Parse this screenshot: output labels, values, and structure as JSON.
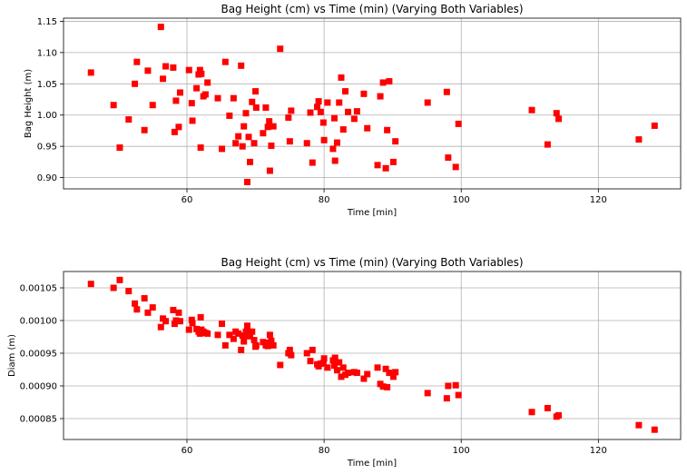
{
  "chart_data": [
    {
      "type": "scatter",
      "title": "Bag Height (cm) vs Time (min) (Varying Both Variables)",
      "xlabel": "Time [min]",
      "ylabel": "Bag Height (m)",
      "xlim": [
        42,
        132
      ],
      "ylim": [
        0.882,
        1.155
      ],
      "xticks": [
        60,
        80,
        100,
        120
      ],
      "yticks": [
        0.9,
        0.95,
        1.0,
        1.05,
        1.1,
        1.15
      ],
      "yticklabels": [
        "0.90",
        "0.95",
        "1.00",
        "1.05",
        "1.10",
        "1.15"
      ],
      "grid": true,
      "marker": "square",
      "color": "#ff0000",
      "x": [
        46.0,
        49.3,
        50.2,
        51.5,
        52.4,
        52.7,
        53.8,
        54.3,
        55.0,
        56.2,
        56.5,
        56.9,
        58.0,
        58.2,
        58.4,
        58.8,
        59.0,
        60.3,
        60.7,
        60.8,
        61.4,
        61.7,
        61.9,
        62.0,
        62.1,
        62.4,
        62.7,
        63.0,
        64.5,
        65.1,
        65.6,
        66.2,
        66.8,
        67.1,
        67.5,
        67.9,
        68.1,
        68.3,
        68.6,
        68.8,
        69.0,
        69.2,
        69.5,
        69.8,
        70.0,
        70.1,
        71.1,
        71.5,
        71.8,
        72.0,
        72.1,
        72.3,
        72.6,
        73.6,
        74.8,
        75.0,
        75.2,
        77.5,
        78.0,
        78.3,
        79.0,
        79.2,
        79.5,
        79.9,
        80.0,
        80.5,
        81.3,
        81.5,
        81.6,
        81.9,
        82.2,
        82.5,
        82.8,
        83.1,
        83.5,
        84.4,
        84.8,
        85.8,
        86.3,
        87.8,
        88.2,
        88.6,
        89.0,
        89.2,
        89.5,
        90.1,
        90.4,
        95.1,
        97.9,
        98.1,
        99.2,
        99.6,
        110.3,
        112.6,
        113.9,
        114.2,
        125.9,
        128.2
      ],
      "y": [
        1.068,
        1.016,
        0.948,
        0.993,
        1.05,
        1.085,
        0.976,
        1.071,
        1.016,
        1.141,
        1.058,
        1.078,
        1.076,
        0.973,
        1.023,
        0.981,
        1.036,
        1.072,
        1.019,
        0.991,
        1.043,
        1.065,
        1.072,
        0.948,
        1.066,
        1.03,
        1.033,
        1.052,
        1.027,
        0.946,
        1.085,
        0.999,
        1.027,
        0.955,
        0.966,
        1.079,
        0.95,
        0.982,
        1.003,
        0.893,
        0.965,
        0.925,
        1.021,
        0.955,
        1.038,
        1.012,
        0.971,
        1.012,
        0.981,
        0.99,
        0.911,
        0.951,
        0.982,
        1.106,
        0.996,
        0.958,
        1.007,
        0.955,
        1.004,
        0.924,
        1.013,
        1.022,
        1.005,
        0.988,
        0.96,
        1.02,
        0.946,
        0.995,
        0.927,
        0.956,
        1.02,
        1.06,
        0.977,
        1.038,
        1.005,
        0.994,
        1.006,
        1.034,
        0.979,
        0.92,
        1.03,
        1.052,
        0.915,
        0.976,
        1.054,
        0.925,
        0.958,
        1.02,
        1.037,
        0.932,
        0.917,
        0.986,
        1.008,
        0.953,
        1.003,
        0.994,
        0.961,
        0.983
      ]
    },
    {
      "type": "scatter",
      "title": "Bag Height (cm) vs Time (min) (Varying Both Variables)",
      "xlabel": "Time [min]",
      "ylabel": "Diam (m)",
      "xlim": [
        42,
        132
      ],
      "ylim": [
        0.000818,
        0.001075
      ],
      "xticks": [
        60,
        80,
        100,
        120
      ],
      "yticks": [
        0.00085,
        0.0009,
        0.00095,
        0.001,
        0.00105
      ],
      "yticklabels": [
        "0.00085",
        "0.00090",
        "0.00095",
        "0.00100",
        "0.00105"
      ],
      "grid": true,
      "marker": "square",
      "color": "#ff0000",
      "x": [
        46.0,
        49.3,
        50.2,
        51.5,
        52.4,
        52.7,
        53.8,
        54.3,
        55.0,
        56.2,
        56.5,
        56.9,
        58.0,
        58.2,
        58.4,
        58.8,
        59.0,
        60.3,
        60.7,
        60.8,
        61.4,
        61.7,
        61.9,
        62.0,
        62.1,
        62.4,
        62.7,
        63.0,
        64.5,
        65.1,
        65.6,
        66.2,
        66.8,
        67.1,
        67.5,
        67.9,
        68.1,
        68.3,
        68.6,
        68.8,
        69.0,
        69.2,
        69.5,
        69.8,
        70.0,
        70.1,
        71.1,
        71.5,
        71.8,
        72.0,
        72.1,
        72.3,
        72.6,
        73.6,
        74.8,
        75.0,
        75.2,
        77.5,
        78.0,
        78.3,
        79.0,
        79.2,
        79.5,
        79.9,
        80.0,
        80.5,
        81.3,
        81.5,
        81.6,
        81.9,
        82.2,
        82.5,
        82.8,
        83.1,
        83.5,
        84.4,
        84.8,
        85.8,
        86.3,
        87.8,
        88.2,
        88.6,
        89.0,
        89.2,
        89.5,
        90.1,
        90.4,
        95.1,
        97.9,
        98.1,
        99.2,
        99.6,
        110.3,
        112.6,
        113.9,
        114.2,
        125.9,
        128.2
      ],
      "y": [
        0.001056,
        0.00105,
        0.001062,
        0.001045,
        0.001026,
        0.001017,
        0.001034,
        0.001012,
        0.00102,
        0.00099,
        0.001003,
        0.000999,
        0.001016,
        0.000995,
        0.001,
        0.001012,
        0.000999,
        0.000986,
        0.001001,
        0.000996,
        0.000987,
        0.000983,
        0.00098,
        0.001005,
        0.000986,
        0.000983,
        0.000981,
        0.00098,
        0.000978,
        0.000995,
        0.000962,
        0.000978,
        0.000972,
        0.000983,
        0.00098,
        0.000955,
        0.000977,
        0.000968,
        0.000983,
        0.000992,
        0.000976,
        0.000978,
        0.000983,
        0.00097,
        0.00096,
        0.000962,
        0.000967,
        0.000962,
        0.000961,
        0.000966,
        0.000978,
        0.000969,
        0.000962,
        0.000932,
        0.00095,
        0.000955,
        0.000947,
        0.00095,
        0.000938,
        0.000955,
        0.000933,
        0.00093,
        0.000934,
        0.000935,
        0.000942,
        0.000928,
        0.000939,
        0.000931,
        0.000943,
        0.000924,
        0.000936,
        0.000914,
        0.000928,
        0.000917,
        0.00092,
        0.000921,
        0.00092,
        0.000911,
        0.000918,
        0.000928,
        0.000903,
        0.000899,
        0.000926,
        0.000898,
        0.00092,
        0.000914,
        0.000921,
        0.000889,
        0.000881,
        0.0009,
        0.000901,
        0.000886,
        0.00086,
        0.000866,
        0.000853,
        0.000855,
        0.00084,
        0.000833
      ]
    }
  ]
}
